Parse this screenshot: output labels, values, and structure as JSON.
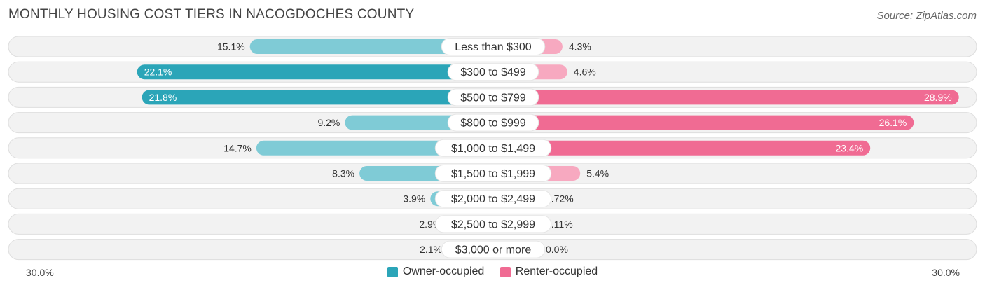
{
  "chart_data": {
    "type": "bar",
    "orientation": "horizontal-diverging",
    "title": "MONTHLY HOUSING COST TIERS IN NACOGDOCHES COUNTY",
    "source": "Source: ZipAtlas.com",
    "categories": [
      "Less than $300",
      "$300 to $499",
      "$500 to $799",
      "$800 to $999",
      "$1,000 to $1,499",
      "$1,500 to $1,999",
      "$2,000 to $2,499",
      "$2,500 to $2,999",
      "$3,000 or more"
    ],
    "series": [
      {
        "name": "Owner-occupied",
        "values": [
          15.1,
          22.1,
          21.8,
          9.2,
          14.7,
          8.3,
          3.9,
          2.9,
          2.1
        ],
        "labels": [
          "15.1%",
          "22.1%",
          "21.8%",
          "9.2%",
          "14.7%",
          "8.3%",
          "3.9%",
          "2.9%",
          "2.1%"
        ],
        "color": "#2ba5b8",
        "color_light": "#7fcbd6"
      },
      {
        "name": "Renter-occupied",
        "values": [
          4.3,
          4.6,
          28.9,
          26.1,
          23.4,
          5.4,
          0.72,
          0.11,
          0.0
        ],
        "labels": [
          "4.3%",
          "4.6%",
          "28.9%",
          "26.1%",
          "23.4%",
          "5.4%",
          "0.72%",
          "0.11%",
          "0.0%"
        ],
        "color": "#f06b93",
        "color_light": "#f7a9c0"
      }
    ],
    "xlim": [
      -30,
      30
    ],
    "axis_left_label": "30.0%",
    "axis_right_label": "30.0%",
    "legend_position": "bottom-center"
  }
}
